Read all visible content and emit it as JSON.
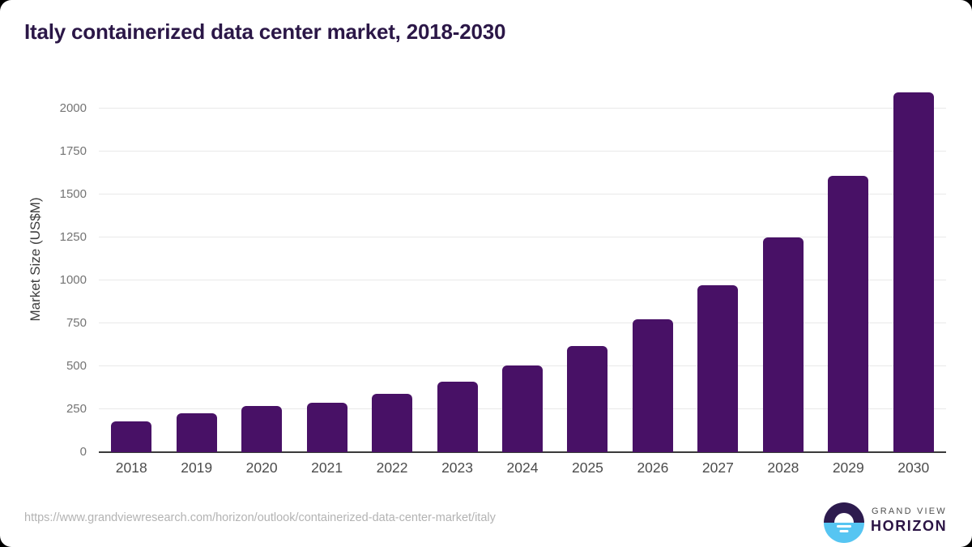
{
  "header": {
    "title": "Italy containerized data center market, 2018-2030"
  },
  "chart_data": {
    "type": "bar",
    "title": "Italy containerized data center market, 2018-2030",
    "xlabel": "",
    "ylabel": "Market Size (US$M)",
    "categories": [
      "2018",
      "2019",
      "2020",
      "2021",
      "2022",
      "2023",
      "2024",
      "2025",
      "2026",
      "2027",
      "2028",
      "2029",
      "2030"
    ],
    "values": [
      180,
      227,
      271,
      287,
      341,
      409,
      506,
      617,
      774,
      973,
      1248,
      1608,
      2093
    ],
    "yticks": [
      0,
      250,
      500,
      750,
      1000,
      1250,
      1500,
      1750,
      2000
    ],
    "ylim": [
      0,
      2135
    ],
    "grid": "horizontal",
    "legend": "none",
    "bar_color": "#481166"
  },
  "footer": {
    "source_url": "https://www.grandviewresearch.com/horizon/outlook/containerized-data-center-market/italy",
    "logo": {
      "top": "GRAND VIEW",
      "bottom": "HORIZON",
      "color_dark": "#2d1b4e",
      "color_blue": "#56c5f2"
    }
  }
}
